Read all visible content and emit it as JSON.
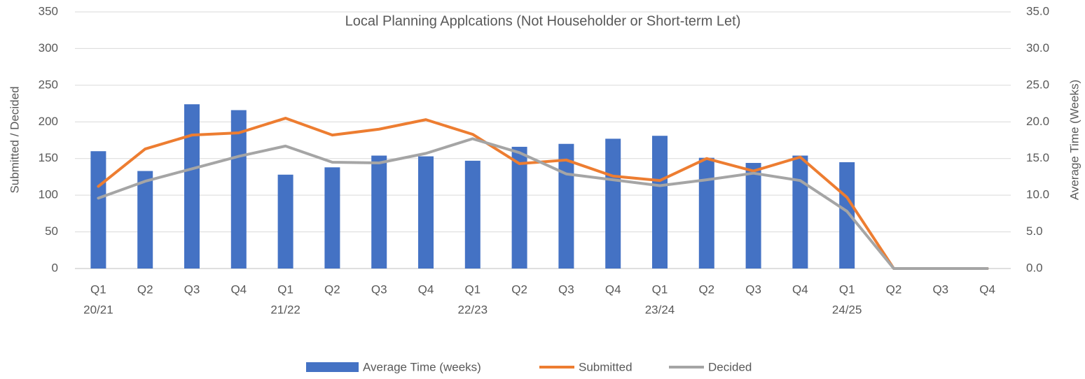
{
  "chart_data": {
    "type": "bar-line",
    "title": "Local Planning Applcations (Not Householder or Short-term Let)",
    "y_label": "Submitted / Decided",
    "y2_label": "Average Time (Weeks)",
    "categories": [
      "Q1",
      "Q2",
      "Q3",
      "Q4",
      "Q1",
      "Q2",
      "Q3",
      "Q4",
      "Q1",
      "Q2",
      "Q3",
      "Q4",
      "Q1",
      "Q2",
      "Q3",
      "Q4",
      "Q1",
      "Q2",
      "Q3",
      "Q4"
    ],
    "category_groups": [
      "20/21",
      "21/22",
      "22/23",
      "23/24",
      "24/25"
    ],
    "series": [
      {
        "name": "Average Time (weeks)",
        "type": "bar",
        "axis": "y2",
        "color": "#4472c4",
        "values": [
          16.0,
          13.3,
          22.4,
          21.6,
          12.8,
          13.8,
          15.4,
          15.3,
          14.7,
          16.6,
          17.0,
          17.7,
          18.1,
          15.1,
          14.4,
          15.4,
          14.5,
          null,
          null,
          null
        ]
      },
      {
        "name": "Submitted",
        "type": "line",
        "color": "#ed7d31",
        "values": [
          112,
          163,
          182,
          185,
          205,
          182,
          190,
          203,
          183,
          143,
          148,
          126,
          120,
          150,
          133,
          152,
          97,
          0,
          0,
          0
        ]
      },
      {
        "name": "Decided",
        "type": "line",
        "color": "#a5a5a5",
        "values": [
          96,
          119,
          136,
          153,
          167,
          145,
          144,
          157,
          177,
          158,
          129,
          121,
          113,
          121,
          130,
          120,
          78,
          0,
          0,
          0
        ]
      }
    ],
    "ylim": [
      0,
      350
    ],
    "yticks": [
      0,
      50,
      100,
      150,
      200,
      250,
      300,
      350
    ],
    "y2lim": [
      0,
      35
    ],
    "y2ticks": [
      {
        "value": 0,
        "label": "0.0"
      },
      {
        "value": 5,
        "label": "5.0"
      },
      {
        "value": 10,
        "label": "10.0"
      },
      {
        "value": 15,
        "label": "15.0"
      },
      {
        "value": 20,
        "label": "20.0"
      },
      {
        "value": 25,
        "label": "25.0"
      },
      {
        "value": 30,
        "label": "30.0"
      },
      {
        "value": 35,
        "label": "35.0"
      }
    ],
    "grid": true,
    "legend": "bottom"
  }
}
